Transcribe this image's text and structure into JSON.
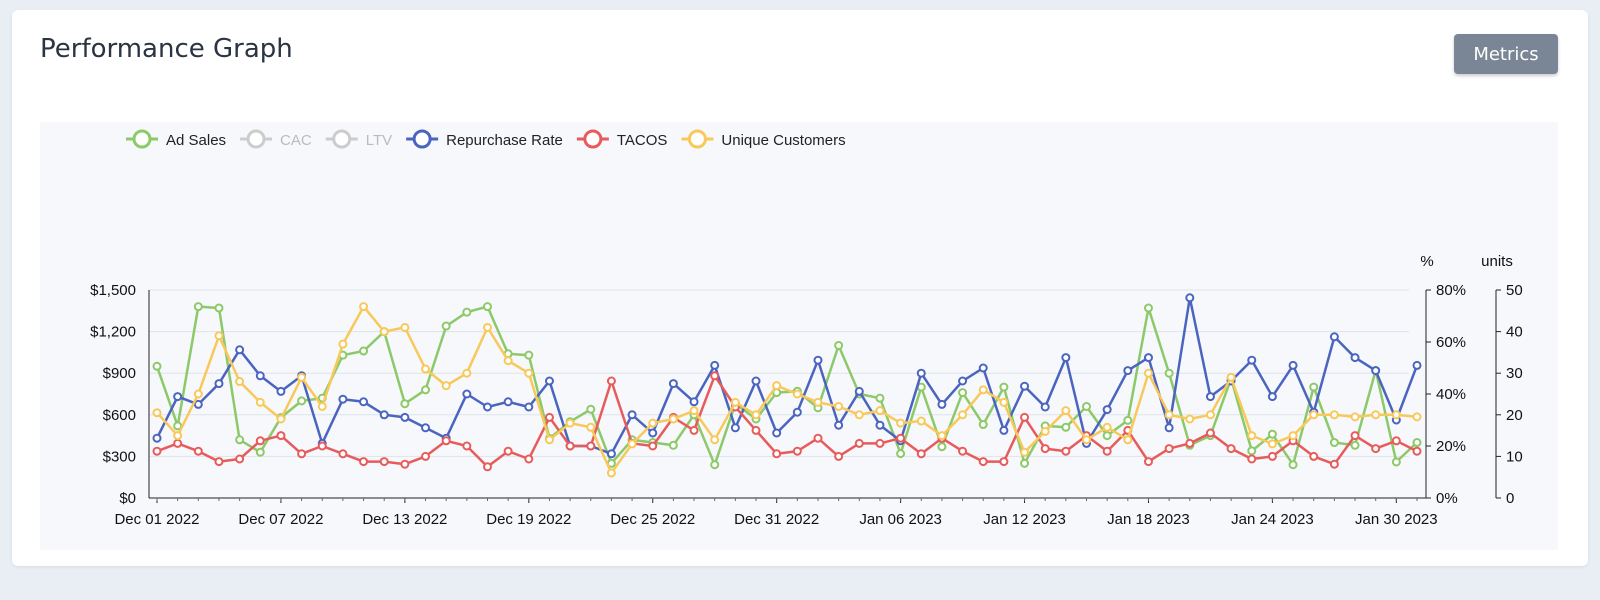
{
  "header": {
    "title": "Performance Graph",
    "metrics_label": "Metrics"
  },
  "chart_data": {
    "type": "line",
    "x_tick_labels": [
      "Dec 01 2022",
      "Dec 07 2022",
      "Dec 13 2022",
      "Dec 19 2022",
      "Dec 25 2022",
      "Dec 31 2022",
      "Jan 06 2023",
      "Jan 12 2023",
      "Jan 18 2023",
      "Jan 24 2023",
      "Jan 30 2023"
    ],
    "axes": {
      "left": {
        "ylim": [
          0,
          1500
        ],
        "ticks": [
          "$0",
          "$300",
          "$600",
          "$900",
          "$1,200",
          "$1,500"
        ]
      },
      "right1": {
        "unit": "%",
        "ylim": [
          0,
          80
        ],
        "ticks": [
          "0%",
          "20%",
          "40%",
          "60%",
          "80%"
        ]
      },
      "right2": {
        "unit": "units",
        "ylim": [
          0,
          50
        ],
        "ticks": [
          "0",
          "10",
          "20",
          "30",
          "40",
          "50"
        ]
      }
    },
    "grid": true,
    "legend_position": "top-left",
    "series": [
      {
        "name": "Ad Sales",
        "color": "#8cc968",
        "axis": "left",
        "active": true,
        "values": [
          950,
          520,
          1380,
          1370,
          420,
          330,
          580,
          700,
          720,
          1030,
          1060,
          1200,
          680,
          780,
          1240,
          1340,
          1380,
          1040,
          1030,
          430,
          550,
          640,
          250,
          420,
          400,
          380,
          600,
          240,
          680,
          570,
          760,
          770,
          650,
          1100,
          750,
          720,
          320,
          800,
          370,
          760,
          530,
          800,
          250,
          520,
          510,
          660,
          450,
          560,
          1370,
          900,
          380,
          450,
          860,
          340,
          460,
          240,
          800,
          400,
          380,
          920,
          260,
          400
        ]
      },
      {
        "name": "CAC",
        "color": "#cccccc",
        "axis": "left",
        "active": false,
        "values": []
      },
      {
        "name": "LTV",
        "color": "#cccccc",
        "axis": "left",
        "active": false,
        "values": []
      },
      {
        "name": "Repurchase Rate",
        "color": "#4a64c0",
        "axis": "right1",
        "active": true,
        "values": [
          23,
          39,
          36,
          44,
          57,
          47,
          41,
          47,
          21,
          38,
          37,
          32,
          31,
          27,
          23,
          40,
          35,
          37,
          35,
          45,
          20,
          20,
          17,
          32,
          25,
          44,
          37,
          51,
          27,
          45,
          25,
          33,
          53,
          28,
          41,
          28,
          22,
          48,
          36,
          45,
          50,
          26,
          43,
          35,
          54,
          21,
          34,
          49,
          54,
          27,
          77,
          39,
          45,
          53,
          39,
          51,
          33,
          62,
          54,
          49,
          30,
          51
        ]
      },
      {
        "name": "TACOS",
        "color": "#e85b5b",
        "axis": "right1",
        "active": true,
        "values": [
          18,
          21,
          18,
          14,
          15,
          22,
          24,
          17,
          20,
          17,
          14,
          14,
          13,
          16,
          22,
          20,
          12,
          18,
          15,
          31,
          20,
          20,
          45,
          21,
          20,
          31,
          26,
          47,
          35,
          26,
          17,
          18,
          23,
          16,
          21,
          21,
          23,
          17,
          23,
          18,
          14,
          14,
          31,
          19,
          18,
          24,
          18,
          26,
          14,
          19,
          21,
          25,
          19,
          15,
          16,
          22,
          16,
          13,
          24,
          19,
          22,
          18
        ]
      },
      {
        "name": "Unique Customers",
        "color": "#f8c95a",
        "axis": "right2",
        "active": true,
        "values": [
          20.5,
          15,
          25,
          39,
          28,
          23,
          19,
          29,
          22,
          37,
          46,
          40,
          41,
          31,
          27,
          30,
          41,
          33,
          30,
          14,
          18,
          17,
          6,
          13,
          18,
          19,
          21,
          14,
          23,
          20,
          27,
          25,
          23,
          22,
          20,
          21,
          18,
          18.5,
          15,
          20,
          26,
          23,
          11,
          16,
          21,
          14,
          17,
          14,
          30,
          20,
          19,
          20,
          29,
          15,
          13,
          15,
          20,
          20,
          19.5,
          20,
          20,
          19.5
        ]
      }
    ]
  }
}
